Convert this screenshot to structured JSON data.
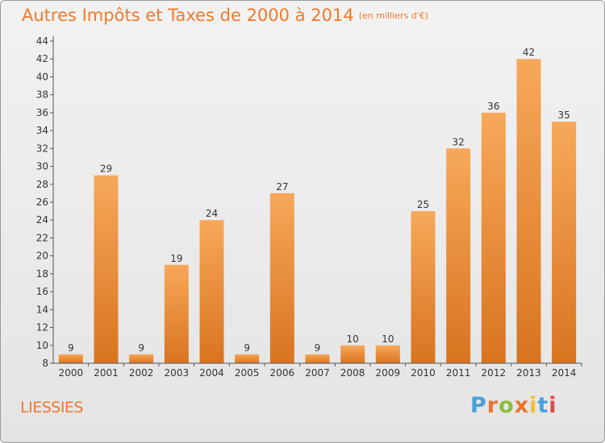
{
  "chart_title": "Autres Impôts et Taxes de 2000 à 2014",
  "chart_unit": "(en milliers d'€)",
  "commune": "LIESSIES",
  "logo_text": "Proxiti",
  "colors": {
    "title": "#f07a2a",
    "bar_top": "#f7a85a",
    "bar_bottom": "#d87420",
    "logo": [
      "#4a9fd8",
      "#e8732a",
      "#8cbf3f",
      "#e8732a",
      "#f2c12e",
      "#4a9fd8",
      "#e04848"
    ]
  },
  "chart_data": {
    "type": "bar",
    "title": "Autres Impôts et Taxes de 2000 à 2014",
    "subtitle": "(en milliers d'€)",
    "categories": [
      "2000",
      "2001",
      "2002",
      "2003",
      "2004",
      "2005",
      "2006",
      "2007",
      "2008",
      "2009",
      "2010",
      "2011",
      "2012",
      "2013",
      "2014"
    ],
    "values": [
      9,
      29,
      9,
      19,
      24,
      9,
      27,
      9,
      10,
      10,
      25,
      32,
      36,
      42,
      35
    ],
    "ylim": [
      8,
      44
    ],
    "yticks": [
      8,
      10,
      12,
      14,
      16,
      18,
      20,
      22,
      24,
      26,
      28,
      30,
      32,
      34,
      36,
      38,
      40,
      42,
      44
    ],
    "xlabel": "",
    "ylabel": "",
    "grid": false,
    "legend": "none"
  }
}
